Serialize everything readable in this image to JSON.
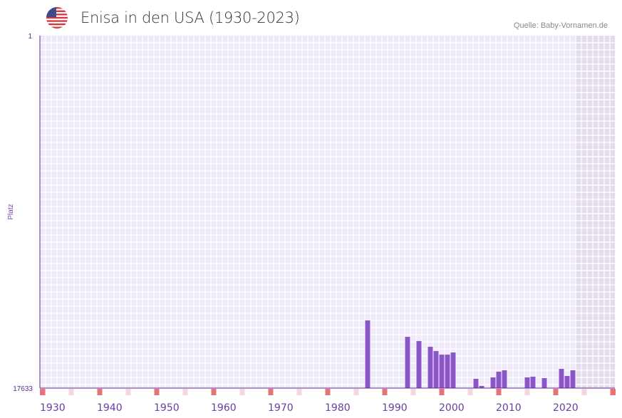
{
  "header": {
    "title": "Enisa in den USA (1930-2023)",
    "source": "Quelle: Baby-Vornamen.de",
    "flag_icon": "us-flag-icon"
  },
  "chart_data": {
    "type": "bar",
    "title": "Enisa in den USA (1930-2023)",
    "xlabel": "",
    "ylabel": "Platz",
    "ylim": [
      17633,
      1
    ],
    "y_ticks": [
      "1",
      "17633"
    ],
    "x_ticks": [
      "1930",
      "1940",
      "1950",
      "1960",
      "1970",
      "1980",
      "1990",
      "2000",
      "2010",
      "2020"
    ],
    "xlim": [
      1930,
      2030
    ],
    "x": [
      1987,
      1994,
      1996,
      1998,
      1999,
      2000,
      2001,
      2002,
      2006,
      2007,
      2009,
      2010,
      2011,
      2015,
      2016,
      2018,
      2021,
      2022,
      2023
    ],
    "values": [
      14249,
      15068,
      15282,
      15567,
      15781,
      15959,
      15959,
      15852,
      17170,
      17526,
      17099,
      16813,
      16742,
      17099,
      17063,
      17134,
      16671,
      17027,
      16742
    ],
    "colors": {
      "bar": "#8b55c9",
      "axis": "#5b2d8e",
      "grid_bg": "#efeafa",
      "decade_marker": "#e8737b",
      "half_decade_marker": "#f5d5de",
      "future_shade": "#e2dcec"
    }
  }
}
